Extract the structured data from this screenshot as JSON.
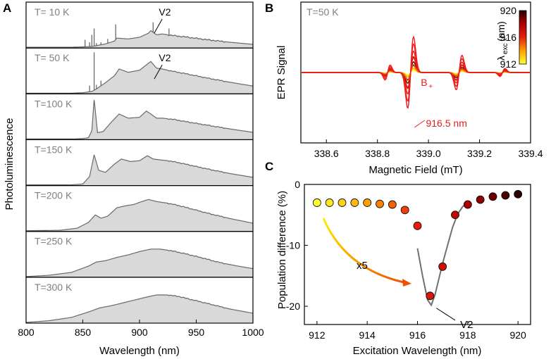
{
  "panel_labels": {
    "a": "A",
    "b": "B",
    "c": "C"
  },
  "colors": {
    "pl_line": "#6a6a6a",
    "pl_fill": "#d9d9d9",
    "temp_text": "#808080",
    "cold": "#ffff33",
    "hot": "#b00000",
    "darkest": "#2a0000",
    "arrow_start": "#ffee00",
    "arrow_end": "#f05000",
    "label_red": "#e02020",
    "gray_line": "#707070"
  },
  "chart_data": [
    {
      "id": "A",
      "type": "area",
      "title": "",
      "xlabel": "Wavelength (nm)",
      "ylabel": "Photoluminescence",
      "xlim": [
        800,
        1000
      ],
      "xticks": [
        "800",
        "850",
        "900",
        "950",
        "1000"
      ],
      "x_tick_values": [
        800,
        850,
        900,
        950,
        1000
      ],
      "series": [
        {
          "name": "T=  10 K",
          "label": "T=  10 K",
          "zpl_nm": 860,
          "zpl_height": 0.45,
          "annotation": "V2",
          "x": [
            800,
            840,
            850,
            858,
            862,
            870,
            878,
            880,
            890,
            900,
            908,
            910,
            915,
            920,
            930,
            940,
            960,
            980,
            1000
          ],
          "y": [
            0.0,
            0.0,
            0.01,
            0.02,
            0.04,
            0.08,
            0.15,
            0.22,
            0.2,
            0.24,
            0.34,
            0.4,
            0.3,
            0.32,
            0.28,
            0.25,
            0.18,
            0.12,
            0.07
          ]
        },
        {
          "name": "T=  50 K",
          "label": "T=  50 K",
          "zpl_nm": 860,
          "zpl_height": 0.98,
          "annotation": "V2",
          "x": [
            800,
            840,
            850,
            858,
            862,
            870,
            878,
            882,
            890,
            900,
            908,
            910,
            915,
            920,
            930,
            940,
            960,
            980,
            1000
          ],
          "y": [
            0.0,
            0.0,
            0.01,
            0.04,
            0.1,
            0.25,
            0.42,
            0.58,
            0.5,
            0.55,
            0.72,
            0.76,
            0.6,
            0.58,
            0.52,
            0.47,
            0.36,
            0.26,
            0.17
          ]
        },
        {
          "name": "T=100 K",
          "label": "T=100 K",
          "x": [
            800,
            840,
            850,
            855,
            858,
            860,
            863,
            868,
            875,
            882,
            890,
            900,
            906,
            910,
            915,
            920,
            930,
            940,
            960,
            980,
            1000
          ],
          "y": [
            0.0,
            0.0,
            0.01,
            0.03,
            0.2,
            0.96,
            0.15,
            0.18,
            0.4,
            0.6,
            0.5,
            0.52,
            0.67,
            0.6,
            0.5,
            0.5,
            0.47,
            0.42,
            0.33,
            0.24,
            0.16
          ]
        },
        {
          "name": "T=150 K",
          "label": "T=150 K",
          "x": [
            800,
            840,
            850,
            856,
            860,
            864,
            870,
            878,
            884,
            892,
            900,
            907,
            912,
            918,
            925,
            935,
            945,
            960,
            980,
            1000
          ],
          "y": [
            0.0,
            0.0,
            0.02,
            0.2,
            0.72,
            0.35,
            0.3,
            0.5,
            0.62,
            0.56,
            0.58,
            0.7,
            0.62,
            0.6,
            0.58,
            0.53,
            0.47,
            0.38,
            0.27,
            0.18
          ]
        },
        {
          "name": "T=200 K",
          "label": "T=200 K",
          "x": [
            800,
            830,
            845,
            855,
            861,
            866,
            872,
            880,
            888,
            895,
            902,
            908,
            915,
            925,
            935,
            945,
            960,
            980,
            1000
          ],
          "y": [
            0.0,
            0.01,
            0.06,
            0.2,
            0.38,
            0.3,
            0.35,
            0.55,
            0.6,
            0.63,
            0.7,
            0.75,
            0.7,
            0.66,
            0.6,
            0.53,
            0.42,
            0.29,
            0.18
          ]
        },
        {
          "name": "T=250 K",
          "label": "T=250 K",
          "x": [
            800,
            820,
            840,
            855,
            862,
            870,
            880,
            890,
            900,
            910,
            918,
            928,
            940,
            955,
            970,
            985,
            1000
          ],
          "y": [
            0.0,
            0.03,
            0.1,
            0.25,
            0.35,
            0.38,
            0.46,
            0.52,
            0.6,
            0.66,
            0.66,
            0.62,
            0.55,
            0.45,
            0.34,
            0.26,
            0.19
          ]
        },
        {
          "name": "T=300 K",
          "label": "T=300 K",
          "x": [
            800,
            820,
            840,
            855,
            865,
            875,
            890,
            905,
            915,
            925,
            935,
            950,
            965,
            980,
            1000
          ],
          "y": [
            0.0,
            0.04,
            0.12,
            0.25,
            0.35,
            0.4,
            0.5,
            0.6,
            0.66,
            0.66,
            0.62,
            0.52,
            0.42,
            0.32,
            0.22
          ]
        }
      ]
    },
    {
      "id": "B",
      "type": "line",
      "title": "T=50 K",
      "xlabel": "Magnetic Field (mT)",
      "ylabel": "EPR Signal",
      "xlim": [
        338.5,
        339.4
      ],
      "xticks": [
        "338.6",
        "338.8",
        "339.0",
        "339.2",
        "339.4"
      ],
      "x_tick_values": [
        338.6,
        338.8,
        339.0,
        339.2,
        339.4
      ],
      "ylim": [
        -1.0,
        1.0
      ],
      "annotations": {
        "peak_label": "B",
        "peak_label_sub": "+",
        "wavelength_label": "916.5 nm"
      },
      "colorbar": {
        "label": "λ",
        "label_sub": "exc",
        "label_unit": " (nm)",
        "tick_labels": [
          "920",
          "916",
          "912"
        ],
        "tick_values": [
          920,
          916,
          912
        ],
        "range": [
          912,
          920
        ]
      },
      "features": [
        {
          "center": 338.84,
          "amplitude": 0.13,
          "width": 0.014
        },
        {
          "center": 338.93,
          "amplitude": 0.62,
          "width": 0.016
        },
        {
          "center": 339.12,
          "amplitude": 0.3,
          "width": 0.016
        },
        {
          "center": 339.29,
          "amplitude": 0.07,
          "width": 0.014
        }
      ],
      "series": [
        {
          "name": "912 nm",
          "lambda_exc": 912,
          "scale": 0.06
        },
        {
          "name": "913 nm",
          "lambda_exc": 913,
          "scale": 0.09
        },
        {
          "name": "914 nm",
          "lambda_exc": 914,
          "scale": 0.13
        },
        {
          "name": "915 nm",
          "lambda_exc": 915,
          "scale": 0.22
        },
        {
          "name": "916 nm",
          "lambda_exc": 916,
          "scale": 0.45
        },
        {
          "name": "916.5 nm",
          "lambda_exc": 916.5,
          "scale": 1.0
        },
        {
          "name": "917 nm",
          "lambda_exc": 917,
          "scale": 0.8
        },
        {
          "name": "917.5 nm",
          "lambda_exc": 917.5,
          "scale": 0.6
        },
        {
          "name": "918 nm",
          "lambda_exc": 918,
          "scale": 0.42
        },
        {
          "name": "919 nm",
          "lambda_exc": 919,
          "scale": 0.3
        },
        {
          "name": "920 nm",
          "lambda_exc": 920,
          "scale": 0.2
        }
      ]
    },
    {
      "id": "C",
      "type": "scatter",
      "title": "",
      "xlabel": "Excitation Wavelength (nm)",
      "ylabel": "Population difference (%)",
      "xlim": [
        911.5,
        920.5
      ],
      "ylim": [
        -23,
        0
      ],
      "xticks": [
        "912",
        "914",
        "916",
        "918",
        "920"
      ],
      "x_tick_values": [
        912,
        914,
        916,
        918,
        920
      ],
      "yticks": [
        "0",
        "-10",
        "-20"
      ],
      "y_tick_values": [
        0,
        -10,
        -20
      ],
      "annotations": {
        "scale_label": "x5",
        "feature_label": "V2"
      },
      "points": {
        "x": [
          912.0,
          912.5,
          913.0,
          913.5,
          914.0,
          914.5,
          915.0,
          915.5,
          916.0,
          916.5,
          917.0,
          917.5,
          918.0,
          918.5,
          919.0,
          919.5,
          920.0
        ],
        "y": [
          -3.0,
          -3.0,
          -3.0,
          -3.0,
          -3.0,
          -3.2,
          -3.3,
          -4.2,
          -6.8,
          -18.3,
          -13.5,
          -5.0,
          -3.3,
          -2.5,
          -2.0,
          -1.8,
          -1.6
        ]
      },
      "pl_overlay_x5": {
        "x": [
          916.0,
          916.2,
          916.4,
          916.55,
          916.7,
          916.85,
          917.0,
          917.2,
          917.4,
          917.6,
          917.8,
          918.0
        ],
        "y": [
          -10.5,
          -15.0,
          -19.0,
          -19.8,
          -18.0,
          -15.5,
          -13.0,
          -10.0,
          -7.0,
          -4.8,
          -3.6,
          -3.0
        ]
      }
    }
  ]
}
